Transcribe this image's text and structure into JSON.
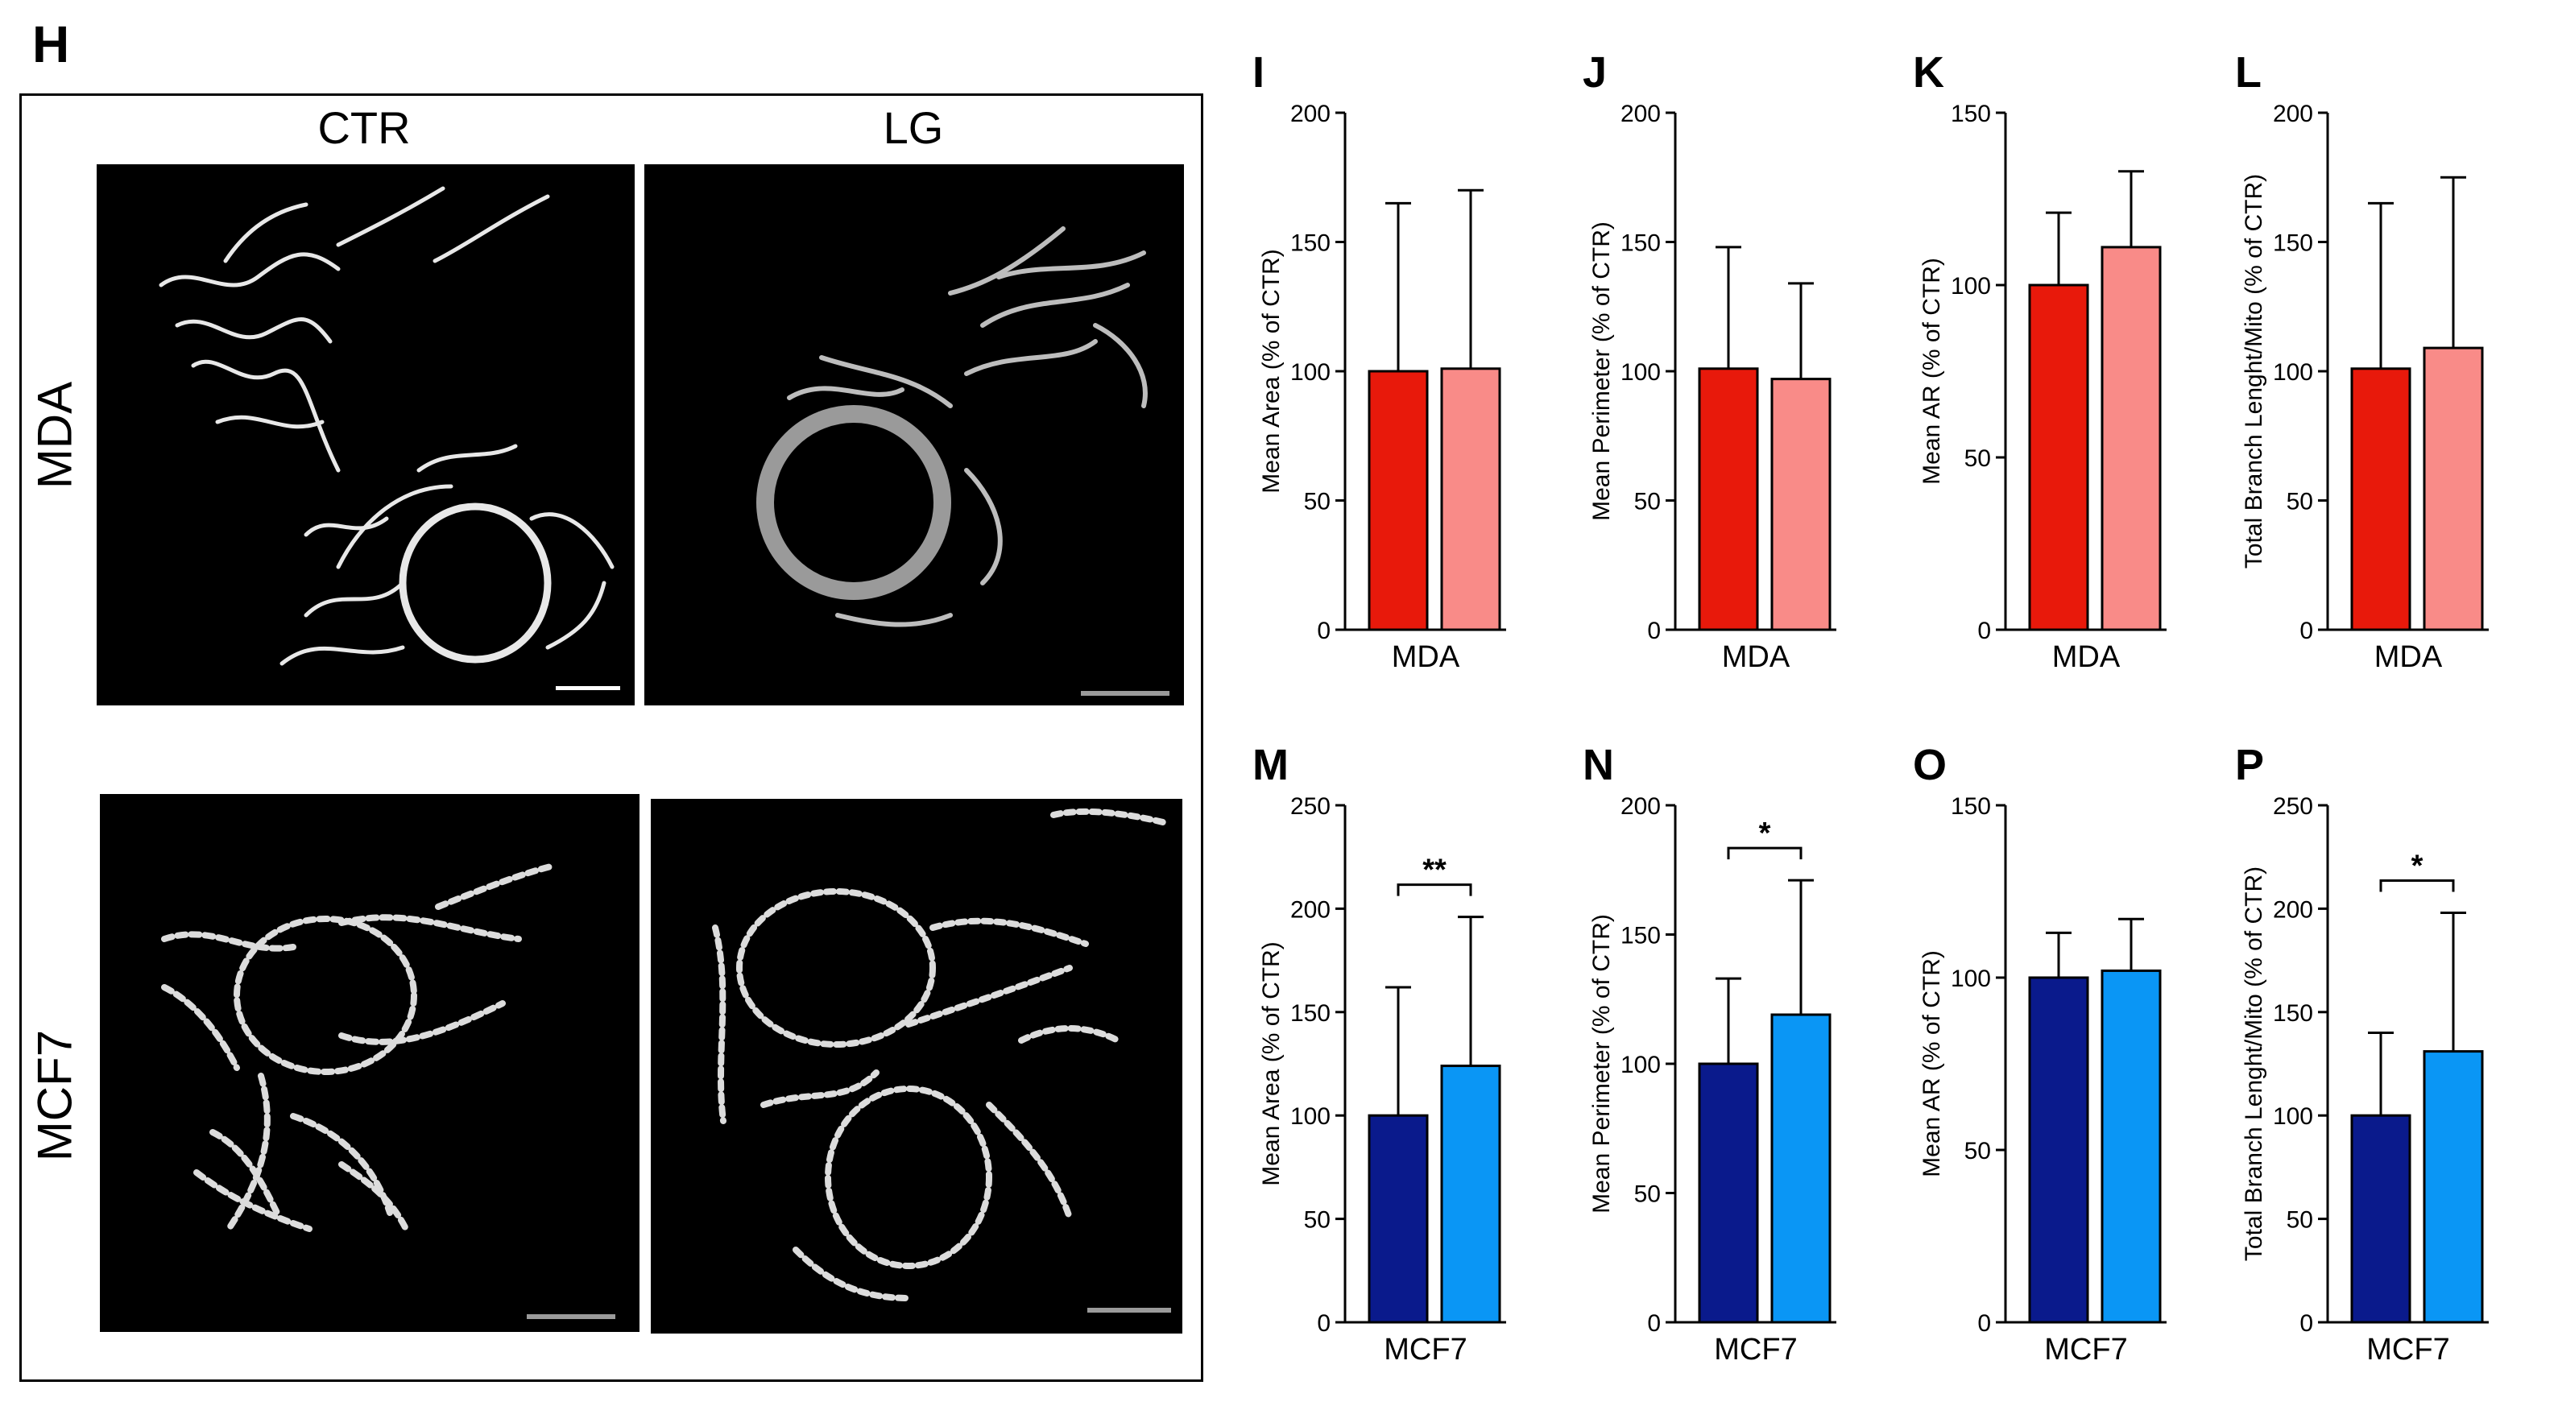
{
  "figure": {
    "panel_h": "H",
    "columns": [
      "CTR",
      "LG"
    ],
    "rows": [
      "MDA",
      "MCF7"
    ]
  },
  "chart_data": [
    {
      "panel": "I",
      "type": "bar",
      "categories": [
        "MDA"
      ],
      "ylabel": "Mean Area (% of CTR)",
      "xlabel": "MDA",
      "ylim": [
        0,
        200
      ],
      "ticks": [
        0,
        50,
        100,
        150,
        200
      ],
      "series": [
        {
          "values": [
            100
          ],
          "error": [
            65
          ],
          "color": "#e8190b"
        },
        {
          "values": [
            101
          ],
          "error": [
            69
          ],
          "color": "#f98b88"
        }
      ],
      "sig": ""
    },
    {
      "panel": "J",
      "type": "bar",
      "categories": [
        "MDA"
      ],
      "ylabel": "Mean Perimeter (% of CTR)",
      "xlabel": "MDA",
      "ylim": [
        0,
        200
      ],
      "ticks": [
        0,
        50,
        100,
        150,
        200
      ],
      "series": [
        {
          "values": [
            101
          ],
          "error": [
            47
          ],
          "color": "#e8190b"
        },
        {
          "values": [
            97
          ],
          "error": [
            37
          ],
          "color": "#f98b88"
        }
      ],
      "sig": ""
    },
    {
      "panel": "K",
      "type": "bar",
      "categories": [
        "MDA"
      ],
      "ylabel": "Mean AR (% of CTR)",
      "xlabel": "MDA",
      "ylim": [
        0,
        150
      ],
      "ticks": [
        0,
        50,
        100,
        150
      ],
      "series": [
        {
          "values": [
            100
          ],
          "error": [
            21
          ],
          "color": "#e8190b"
        },
        {
          "values": [
            111
          ],
          "error": [
            22
          ],
          "color": "#f98b88"
        }
      ],
      "sig": ""
    },
    {
      "panel": "L",
      "type": "bar",
      "categories": [
        "MDA"
      ],
      "ylabel": "Total Branch Lenght/Mito (% of CTR)",
      "xlabel": "MDA",
      "ylim": [
        0,
        200
      ],
      "ticks": [
        0,
        50,
        100,
        150,
        200
      ],
      "series": [
        {
          "values": [
            101
          ],
          "error": [
            64
          ],
          "color": "#e8190b"
        },
        {
          "values": [
            109
          ],
          "error": [
            66
          ],
          "color": "#f98b88"
        }
      ],
      "sig": ""
    },
    {
      "panel": "M",
      "type": "bar",
      "categories": [
        "MCF7"
      ],
      "ylabel": "Mean Area (% of CTR)",
      "xlabel": "MCF7",
      "ylim": [
        0,
        250
      ],
      "ticks": [
        0,
        50,
        100,
        150,
        200,
        250
      ],
      "series": [
        {
          "values": [
            100
          ],
          "error": [
            62
          ],
          "color": "#0a1a8c"
        },
        {
          "values": [
            124
          ],
          "error": [
            72
          ],
          "color": "#0a96f5"
        }
      ],
      "sig": "**"
    },
    {
      "panel": "N",
      "type": "bar",
      "categories": [
        "MCF7"
      ],
      "ylabel": "Mean Perimeter (% of CTR)",
      "xlabel": "MCF7",
      "ylim": [
        0,
        200
      ],
      "ticks": [
        0,
        50,
        100,
        150,
        200
      ],
      "series": [
        {
          "values": [
            100
          ],
          "error": [
            33
          ],
          "color": "#0a1a8c"
        },
        {
          "values": [
            119
          ],
          "error": [
            52
          ],
          "color": "#0a96f5"
        }
      ],
      "sig": "*"
    },
    {
      "panel": "O",
      "type": "bar",
      "categories": [
        "MCF7"
      ],
      "ylabel": "Mean AR (% of CTR)",
      "xlabel": "MCF7",
      "ylim": [
        0,
        150
      ],
      "ticks": [
        0,
        50,
        100,
        150
      ],
      "series": [
        {
          "values": [
            100
          ],
          "error": [
            13
          ],
          "color": "#0a1a8c"
        },
        {
          "values": [
            102
          ],
          "error": [
            15
          ],
          "color": "#0a96f5"
        }
      ],
      "sig": ""
    },
    {
      "panel": "P",
      "type": "bar",
      "categories": [
        "MCF7"
      ],
      "ylabel": "Total Branch Lenght/Mito (% of CTR)",
      "xlabel": "MCF7",
      "ylim": [
        0,
        250
      ],
      "ticks": [
        0,
        50,
        100,
        150,
        200,
        250
      ],
      "series": [
        {
          "values": [
            100
          ],
          "error": [
            40
          ],
          "color": "#0a1a8c"
        },
        {
          "values": [
            131
          ],
          "error": [
            67
          ],
          "color": "#0a96f5"
        }
      ],
      "sig": "*"
    }
  ]
}
